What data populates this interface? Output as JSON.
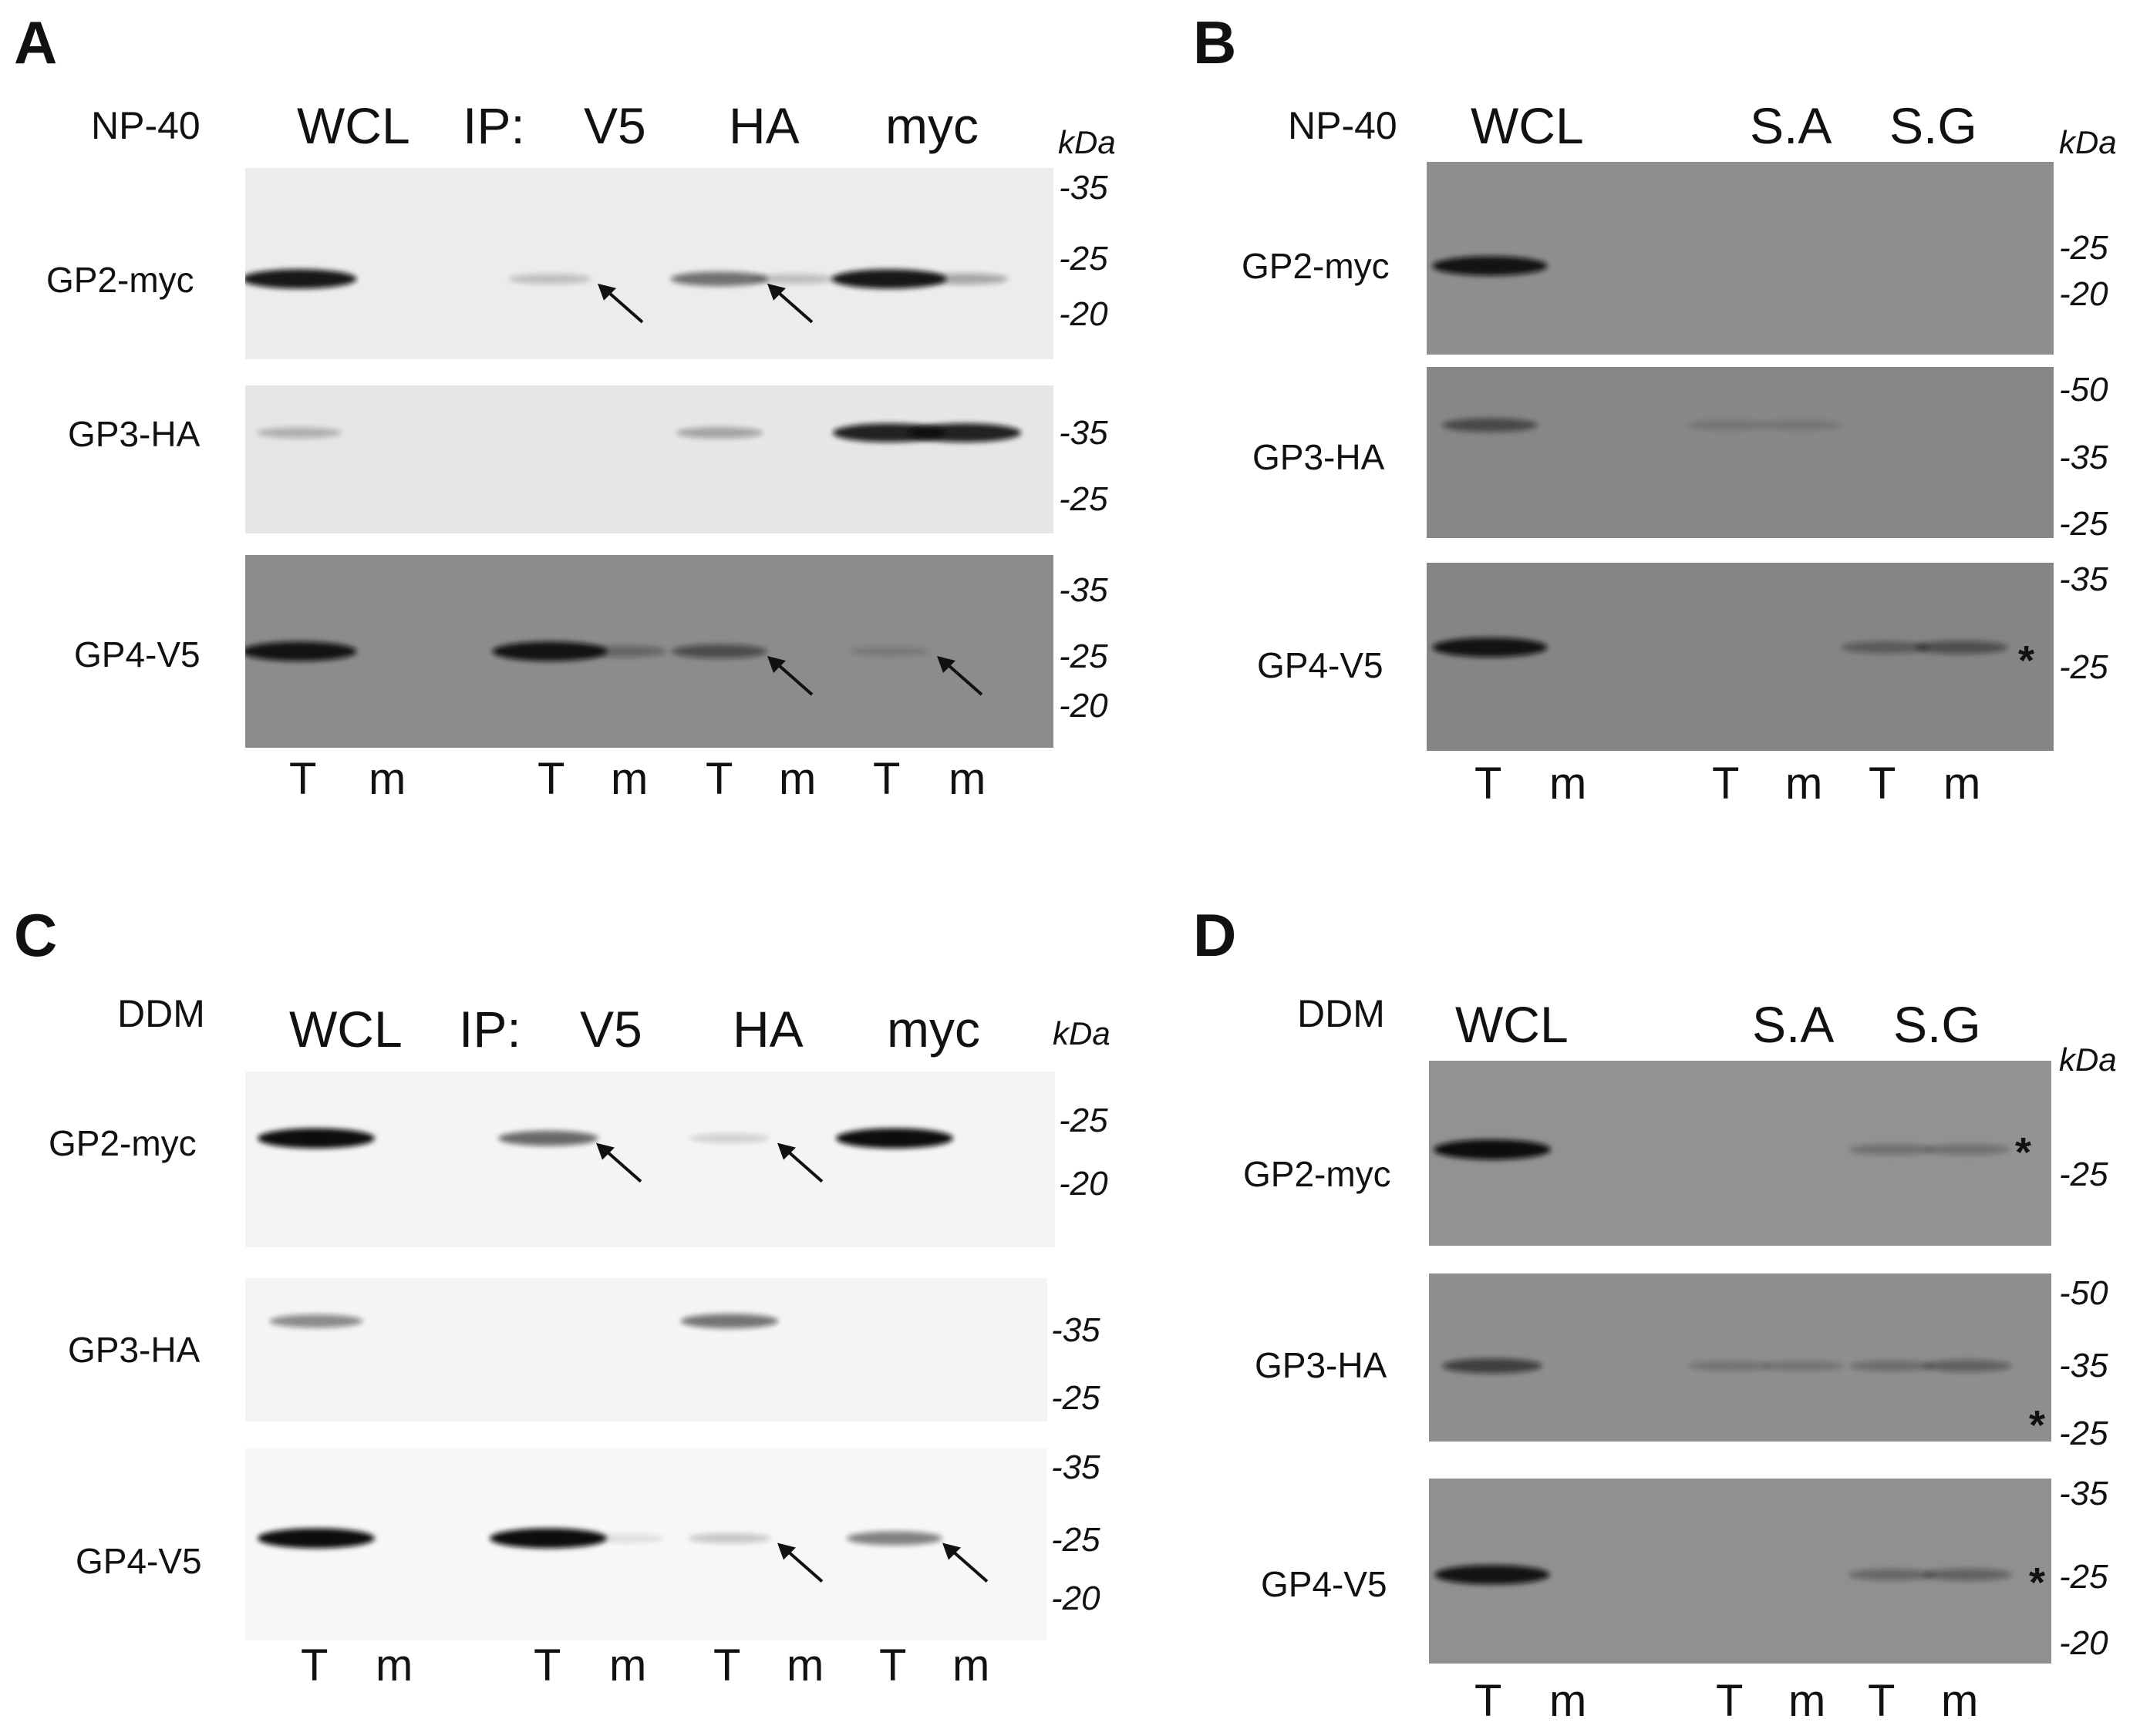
{
  "panels": [
    {
      "letter": "A",
      "detergent": "NP-40",
      "headers": [
        "WCL",
        "IP:",
        "V5",
        "HA",
        "myc"
      ],
      "unit": "kDa",
      "lanes": [
        "T",
        "m",
        "T",
        "m",
        "T",
        "m",
        "T",
        "m"
      ],
      "blots": [
        {
          "label": "GP2-myc",
          "markers": [
            "-35",
            "-25",
            "-20"
          ],
          "bg": "#ececec",
          "bands": [
            {
              "lane": 0,
              "intensity": 0.95
            },
            {
              "lane": 2,
              "intensity": 0.2,
              "arrow": true
            },
            {
              "lane": 4,
              "intensity": 0.55,
              "arrow": true
            },
            {
              "lane": 5,
              "intensity": 0.2
            },
            {
              "lane": 6,
              "intensity": 0.95
            },
            {
              "lane": 7,
              "intensity": 0.3
            }
          ]
        },
        {
          "label": "GP3-HA",
          "markers": [
            "-35",
            "-25"
          ],
          "bg": "#e6e6e6",
          "bands": [
            {
              "lane": 0,
              "intensity": 0.25
            },
            {
              "lane": 4,
              "intensity": 0.3
            },
            {
              "lane": 6,
              "intensity": 0.9
            },
            {
              "lane": 7,
              "intensity": 0.9
            }
          ]
        },
        {
          "label": "GP4-V5",
          "markers": [
            "-35",
            "-25",
            "-20"
          ],
          "bg": "#8c8c8c",
          "bands": [
            {
              "lane": 0,
              "intensity": 0.95
            },
            {
              "lane": 2,
              "intensity": 0.95
            },
            {
              "lane": 3,
              "intensity": 0.3
            },
            {
              "lane": 4,
              "intensity": 0.5,
              "arrow": true
            },
            {
              "lane": 6,
              "intensity": 0.15,
              "arrow": true
            }
          ]
        }
      ]
    },
    {
      "letter": "B",
      "detergent": "NP-40",
      "headers": [
        "WCL",
        "S.A",
        "S.G"
      ],
      "unit": "kDa",
      "lanes": [
        "T",
        "m",
        "T",
        "m",
        "T",
        "m"
      ],
      "blots": [
        {
          "label": "GP2-myc",
          "markers": [
            "-25",
            "-20"
          ],
          "bg": "#8e8e8e",
          "bands": [
            {
              "lane": 0,
              "intensity": 0.95
            }
          ]
        },
        {
          "label": "GP3-HA",
          "markers": [
            "-50",
            "-35",
            "-25"
          ],
          "bg": "#878787",
          "bands": [
            {
              "lane": 0,
              "intensity": 0.5
            },
            {
              "lane": 2,
              "intensity": 0.15
            },
            {
              "lane": 3,
              "intensity": 0.15
            }
          ]
        },
        {
          "label": "GP4-V5",
          "markers": [
            "-35",
            "-25"
          ],
          "bg": "#858585",
          "stars": [
            "*"
          ],
          "bands": [
            {
              "lane": 0,
              "intensity": 0.95
            },
            {
              "lane": 4,
              "intensity": 0.35
            },
            {
              "lane": 5,
              "intensity": 0.45
            }
          ]
        }
      ]
    },
    {
      "letter": "C",
      "detergent": "DDM",
      "headers": [
        "WCL",
        "IP:",
        "V5",
        "HA",
        "myc"
      ],
      "unit": "kDa",
      "lanes": [
        "T",
        "m",
        "T",
        "m",
        "T",
        "m",
        "T",
        "m"
      ],
      "blots": [
        {
          "label": "GP2-myc",
          "markers": [
            "-25",
            "-20"
          ],
          "bg": "#f4f4f4",
          "bands": [
            {
              "lane": 0,
              "intensity": 1.0
            },
            {
              "lane": 2,
              "intensity": 0.6,
              "arrow": true
            },
            {
              "lane": 4,
              "intensity": 0.15,
              "arrow": true
            },
            {
              "lane": 6,
              "intensity": 1.0
            }
          ]
        },
        {
          "label": "GP3-HA",
          "markers": [
            "-35",
            "-25"
          ],
          "bg": "#f4f4f4",
          "bands": [
            {
              "lane": 0,
              "intensity": 0.45
            },
            {
              "lane": 4,
              "intensity": 0.55
            }
          ]
        },
        {
          "label": "GP4-V5",
          "markers": [
            "-35",
            "-25",
            "-20"
          ],
          "bg": "#f7f7f7",
          "bands": [
            {
              "lane": 0,
              "intensity": 1.0
            },
            {
              "lane": 2,
              "intensity": 1.0
            },
            {
              "lane": 3,
              "intensity": 0.1
            },
            {
              "lane": 4,
              "intensity": 0.2,
              "arrow": true
            },
            {
              "lane": 6,
              "intensity": 0.5,
              "arrow": true
            }
          ]
        }
      ]
    },
    {
      "letter": "D",
      "detergent": "DDM",
      "headers": [
        "WCL",
        "S.A",
        "S.G"
      ],
      "unit": "kDa",
      "lanes": [
        "T",
        "m",
        "T",
        "m",
        "T",
        "m"
      ],
      "blots": [
        {
          "label": "GP2-myc",
          "markers": [
            "-25"
          ],
          "bg": "#929292",
          "stars": [
            "*"
          ],
          "bands": [
            {
              "lane": 0,
              "intensity": 1.0
            },
            {
              "lane": 4,
              "intensity": 0.25
            },
            {
              "lane": 5,
              "intensity": 0.25
            }
          ]
        },
        {
          "label": "GP3-HA",
          "markers": [
            "-50",
            "-35",
            "-25"
          ],
          "bg": "#8e8e8e",
          "stars": [
            "*"
          ],
          "bands": [
            {
              "lane": 0,
              "intensity": 0.6
            },
            {
              "lane": 2,
              "intensity": 0.2
            },
            {
              "lane": 3,
              "intensity": 0.2
            },
            {
              "lane": 4,
              "intensity": 0.25
            },
            {
              "lane": 5,
              "intensity": 0.35
            }
          ]
        },
        {
          "label": "GP4-V5",
          "markers": [
            "-35",
            "-25",
            "-20"
          ],
          "bg": "#909090",
          "stars": [
            "*"
          ],
          "bands": [
            {
              "lane": 0,
              "intensity": 0.95
            },
            {
              "lane": 4,
              "intensity": 0.3
            },
            {
              "lane": 5,
              "intensity": 0.35
            }
          ]
        }
      ]
    }
  ]
}
